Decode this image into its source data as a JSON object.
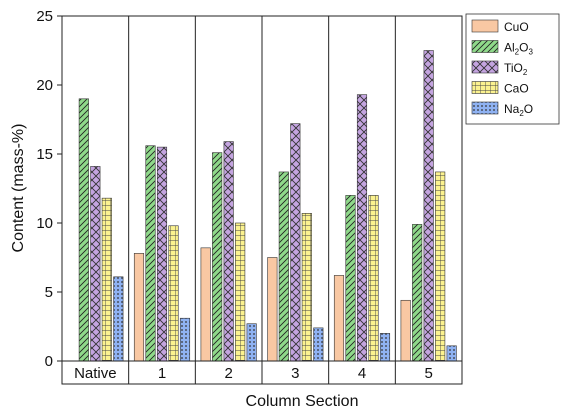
{
  "chart_data": {
    "type": "bar",
    "xlabel": "Column Section",
    "ylabel": "Content (mass-%)",
    "ylim": [
      0,
      25
    ],
    "yticks": [
      "0",
      "5",
      "10",
      "15",
      "20",
      "25"
    ],
    "categories": [
      "Native",
      "1",
      "2",
      "3",
      "4",
      "5"
    ],
    "legend_position": "top-right",
    "grid": false,
    "series": [
      {
        "name": "CuO",
        "legend_base": "CuO",
        "legend_parts": [],
        "color": "#f9c8a3",
        "pattern": "none",
        "values": [
          0,
          7.8,
          8.2,
          7.5,
          6.2,
          4.4
        ]
      },
      {
        "name": "Al2O3",
        "legend_base": "Al",
        "legend_parts": [
          [
            "2",
            "sub"
          ],
          [
            "O",
            ""
          ],
          [
            "3",
            "sub"
          ]
        ],
        "color": "#8fd98a",
        "pattern": "diagonal",
        "values": [
          19.0,
          15.6,
          15.1,
          13.7,
          12.0,
          9.9
        ]
      },
      {
        "name": "TiO2",
        "legend_base": "TiO",
        "legend_parts": [
          [
            "2",
            "sub"
          ]
        ],
        "color": "#c4a4e0",
        "pattern": "crosshatch",
        "values": [
          14.1,
          15.5,
          15.9,
          17.2,
          19.3,
          22.5
        ]
      },
      {
        "name": "CaO",
        "legend_base": "CaO",
        "legend_parts": [],
        "color": "#fbf28f",
        "pattern": "grid",
        "values": [
          11.8,
          9.8,
          10.0,
          10.7,
          12.0,
          13.7
        ]
      },
      {
        "name": "Na2O",
        "legend_base": "Na",
        "legend_parts": [
          [
            "2",
            "sub"
          ],
          [
            "O",
            ""
          ]
        ],
        "color": "#8fb2f2",
        "pattern": "dots",
        "values": [
          6.1,
          3.1,
          2.7,
          2.4,
          2.0,
          1.1
        ]
      }
    ]
  }
}
